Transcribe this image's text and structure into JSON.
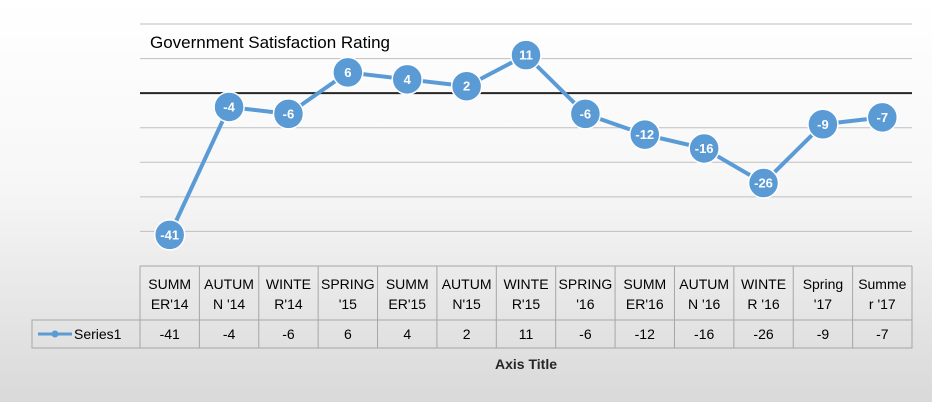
{
  "chart_data": {
    "type": "line",
    "title": "Government Satisfaction Rating",
    "xlabel": "Axis Title",
    "ylabel": "",
    "ylim": [
      -50,
      20
    ],
    "grid": true,
    "legend_position": "data-table",
    "categories": [
      [
        "SUMM",
        "ER'14"
      ],
      [
        "AUTUM",
        "N '14"
      ],
      [
        "WINTE",
        "R'14"
      ],
      [
        "SPRING",
        "'15"
      ],
      [
        "SUMM",
        "ER'15"
      ],
      [
        "AUTUM",
        "N'15"
      ],
      [
        "WINTE",
        "R'15"
      ],
      [
        "SPRING",
        "'16"
      ],
      [
        "SUMM",
        "ER'16"
      ],
      [
        "AUTUM",
        "N '16"
      ],
      [
        "WINTE",
        "R '16"
      ],
      [
        "Spring",
        "'17"
      ],
      [
        "Summe",
        "r '17"
      ]
    ],
    "series": [
      {
        "name": "Series1",
        "values": [
          -41,
          -4,
          -6,
          6,
          4,
          2,
          11,
          -6,
          -12,
          -16,
          -26,
          -9,
          -7
        ],
        "color": "#5b9bd5"
      }
    ],
    "gridline_color": "#bfbfbf",
    "zero_line_color": "#262626"
  }
}
